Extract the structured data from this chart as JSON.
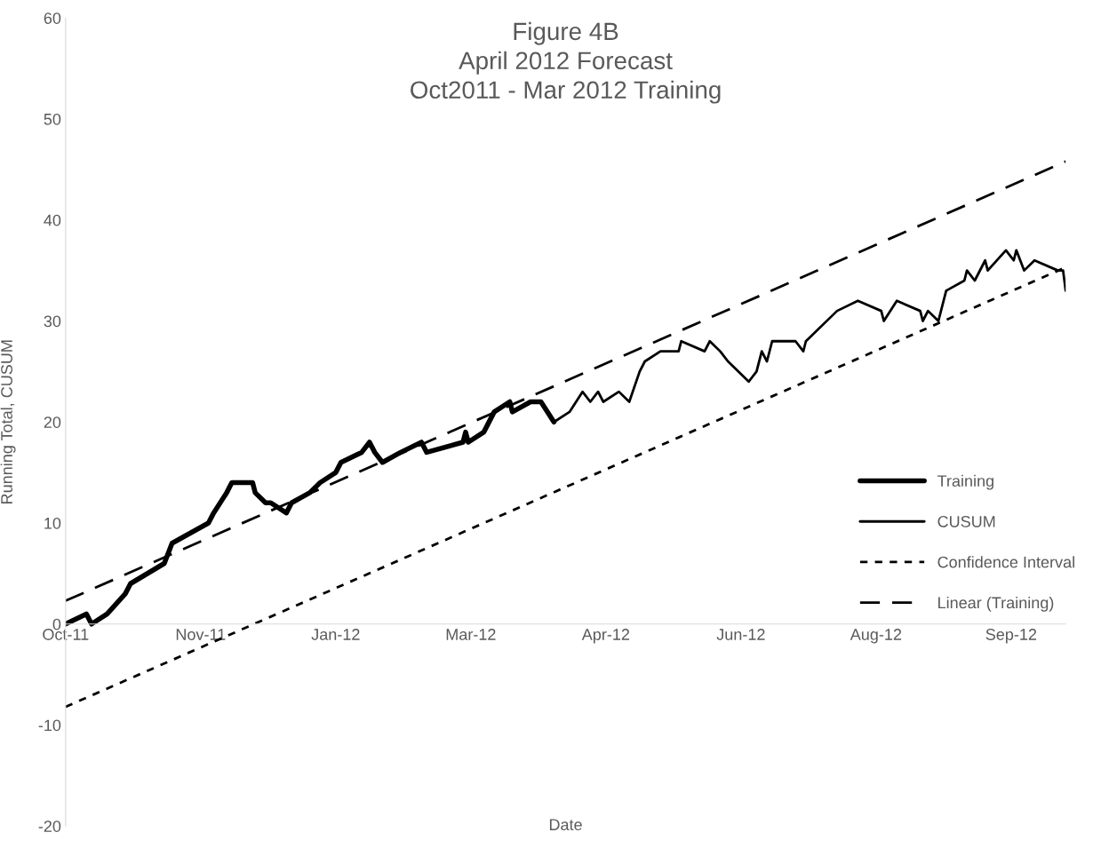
{
  "chart_data": {
    "type": "line",
    "title": "Figure 4B\nApril 2012 Forecast\nOct2011 - Mar 2012 Training",
    "xlabel": "Date",
    "ylabel": "Running Total, CUSUM",
    "series": [
      {
        "name": "Training",
        "color": "#000000",
        "line_style": "solid",
        "x": [
          "2011-10-01",
          "2011-10-09",
          "2011-10-11",
          "2011-10-17",
          "2011-10-24",
          "2011-10-26",
          "2011-11-08",
          "2011-11-11",
          "2011-11-25",
          "2011-11-27",
          "2011-12-02",
          "2011-12-04",
          "2011-12-12",
          "2011-12-13",
          "2011-12-17",
          "2011-12-19",
          "2011-12-25",
          "2011-12-27",
          "2012-01-03",
          "2012-01-07",
          "2012-01-13",
          "2012-01-15",
          "2012-01-23",
          "2012-01-26",
          "2012-01-28",
          "2012-01-31",
          "2012-02-07",
          "2012-02-15",
          "2012-02-17",
          "2012-03-02",
          "2012-03-03",
          "2012-03-04",
          "2012-03-10",
          "2012-03-14",
          "2012-03-20",
          "2012-03-21",
          "2012-03-28",
          "2012-04-01",
          "2012-04-06"
        ],
        "values": [
          0,
          1,
          0,
          1,
          3,
          4,
          6,
          8,
          10,
          11,
          13,
          14,
          14,
          13,
          12,
          12,
          11,
          12,
          13,
          14,
          15,
          16,
          17,
          18,
          17,
          16,
          17,
          18,
          17,
          18,
          19,
          18,
          19,
          21,
          22,
          21,
          22,
          22,
          20
        ]
      },
      {
        "name": "CUSUM",
        "color": "#000000",
        "line_style": "solid",
        "x": [
          "2012-04-06",
          "2012-04-12",
          "2012-04-17",
          "2012-04-20",
          "2012-04-23",
          "2012-04-25",
          "2012-05-01",
          "2012-05-05",
          "2012-05-09",
          "2012-05-11",
          "2012-05-17",
          "2012-05-24",
          "2012-05-25",
          "2012-06-03",
          "2012-06-05",
          "2012-06-09",
          "2012-06-12",
          "2012-06-20",
          "2012-06-23",
          "2012-06-25",
          "2012-06-27",
          "2012-06-29",
          "2012-07-08",
          "2012-07-11",
          "2012-07-12",
          "2012-07-24",
          "2012-08-01",
          "2012-08-10",
          "2012-08-11",
          "2012-08-16",
          "2012-08-25",
          "2012-08-26",
          "2012-08-28",
          "2012-09-01",
          "2012-09-04",
          "2012-09-11",
          "2012-09-12",
          "2012-09-15",
          "2012-09-19",
          "2012-09-20",
          "2012-09-27",
          "2012-09-30",
          "2012-10-01",
          "2012-10-04",
          "2012-10-08",
          "2012-10-17",
          "2012-10-19",
          "2012-10-20"
        ],
        "values": [
          20,
          21,
          23,
          22,
          23,
          22,
          23,
          22,
          25,
          26,
          27,
          27,
          28,
          27,
          28,
          27,
          26,
          24,
          25,
          27,
          26,
          28,
          28,
          27,
          28,
          31,
          32,
          31,
          30,
          32,
          31,
          30,
          31,
          30,
          33,
          34,
          35,
          34,
          36,
          35,
          37,
          36,
          37,
          35,
          36,
          35,
          35,
          33
        ]
      },
      {
        "name": "Confidence Interval",
        "color": "#000000",
        "line_style": "dotted",
        "x": [
          "2011-10-01",
          "2012-10-19"
        ],
        "values": [
          -8.2,
          35.2
        ]
      },
      {
        "name": "Linear (Training)",
        "color": "#000000",
        "line_style": "dashed",
        "x": [
          "2011-10-01",
          "2012-10-20"
        ],
        "values": [
          2.3,
          45.8
        ]
      }
    ],
    "xlim": [
      "2011-10-01",
      "2012-10-20"
    ],
    "xticks": [
      {
        "value": "2011-10-01",
        "label": "Oct-11"
      },
      {
        "value": "2011-11-22",
        "label": "Nov-11"
      },
      {
        "value": "2012-01-13",
        "label": "Jan-12"
      },
      {
        "value": "2012-03-05",
        "label": "Mar-12"
      },
      {
        "value": "2012-04-26",
        "label": "Apr-12"
      },
      {
        "value": "2012-06-17",
        "label": "Jun-12"
      },
      {
        "value": "2012-08-08",
        "label": "Aug-12"
      },
      {
        "value": "2012-09-29",
        "label": "Sep-12"
      }
    ],
    "ylim": [
      -20,
      60
    ],
    "yticks": [
      -20,
      -10,
      0,
      10,
      20,
      30,
      40,
      50,
      60
    ],
    "grid": false,
    "legend": "right",
    "marker": "none"
  }
}
